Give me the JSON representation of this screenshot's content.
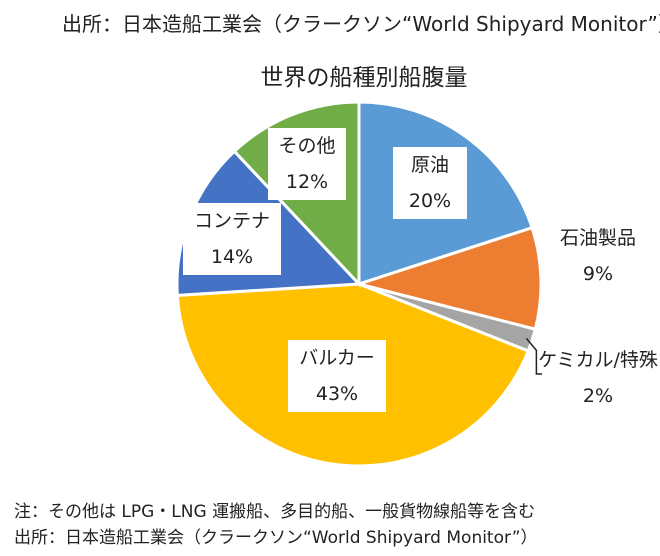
{
  "header": {
    "source": "出所：日本造船工業会（クラークソン“World Shipyard Monitor”）"
  },
  "footer": {
    "note": "注：その他は LPG・LNG 運搬船、多目的船、一般貨物線船等を含む",
    "source": "出所：日本造船工業会（クラークソン“World Shipyard Monitor”）"
  },
  "chart_data": {
    "type": "pie",
    "title": "世界の船種別船腹量",
    "unit": "%",
    "slices": [
      {
        "label": "原油",
        "value": 20,
        "value_label": "20%",
        "color": "#5b9bd5"
      },
      {
        "label": "石油製品",
        "value": 9,
        "value_label": "9%",
        "color": "#ed7d31"
      },
      {
        "label": "ケミカル/特殊",
        "value": 2,
        "value_label": "2%",
        "color": "#a5a5a5"
      },
      {
        "label": "バルカー",
        "value": 43,
        "value_label": "43%",
        "color": "#ffc000"
      },
      {
        "label": "コンテナ",
        "value": 14,
        "value_label": "14%",
        "color": "#4472c4"
      },
      {
        "label": "その他",
        "value": 12,
        "value_label": "12%",
        "color": "#70ad47"
      }
    ]
  }
}
